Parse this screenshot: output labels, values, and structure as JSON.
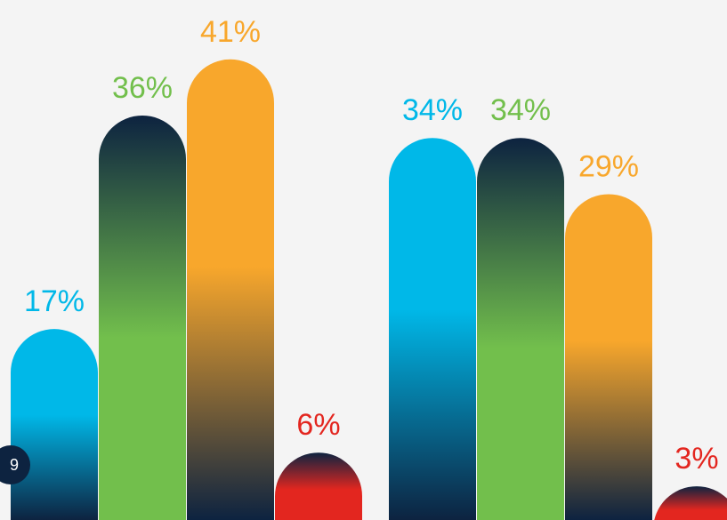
{
  "page_number": "9",
  "colors": {
    "background": "#f4f4f4",
    "cyan": "#00b8e8",
    "green": "#72bf4c",
    "orange": "#f8a72c",
    "red": "#e3261f",
    "navy": "#0d2340"
  },
  "chart_data": {
    "type": "bar",
    "title": "",
    "xlabel": "",
    "ylabel": "",
    "ylim": [
      0,
      45
    ],
    "grid": false,
    "legend": "none",
    "groups": [
      {
        "bars": [
          {
            "value": 17,
            "label": "17%",
            "color": "cyan",
            "gradient": "color-to-navy"
          },
          {
            "value": 36,
            "label": "36%",
            "color": "green",
            "gradient": "navy-to-color"
          },
          {
            "value": 41,
            "label": "41%",
            "color": "orange",
            "gradient": "color-to-navy"
          },
          {
            "value": 6,
            "label": "6%",
            "color": "red",
            "gradient": "navy-to-color"
          }
        ]
      },
      {
        "bars": [
          {
            "value": 34,
            "label": "34%",
            "color": "cyan",
            "gradient": "color-to-navy"
          },
          {
            "value": 34,
            "label": "34%",
            "color": "green",
            "gradient": "navy-to-color"
          },
          {
            "value": 29,
            "label": "29%",
            "color": "orange",
            "gradient": "color-to-navy"
          },
          {
            "value": 3,
            "label": "3%",
            "color": "red",
            "gradient": "navy-to-color"
          }
        ]
      }
    ]
  }
}
